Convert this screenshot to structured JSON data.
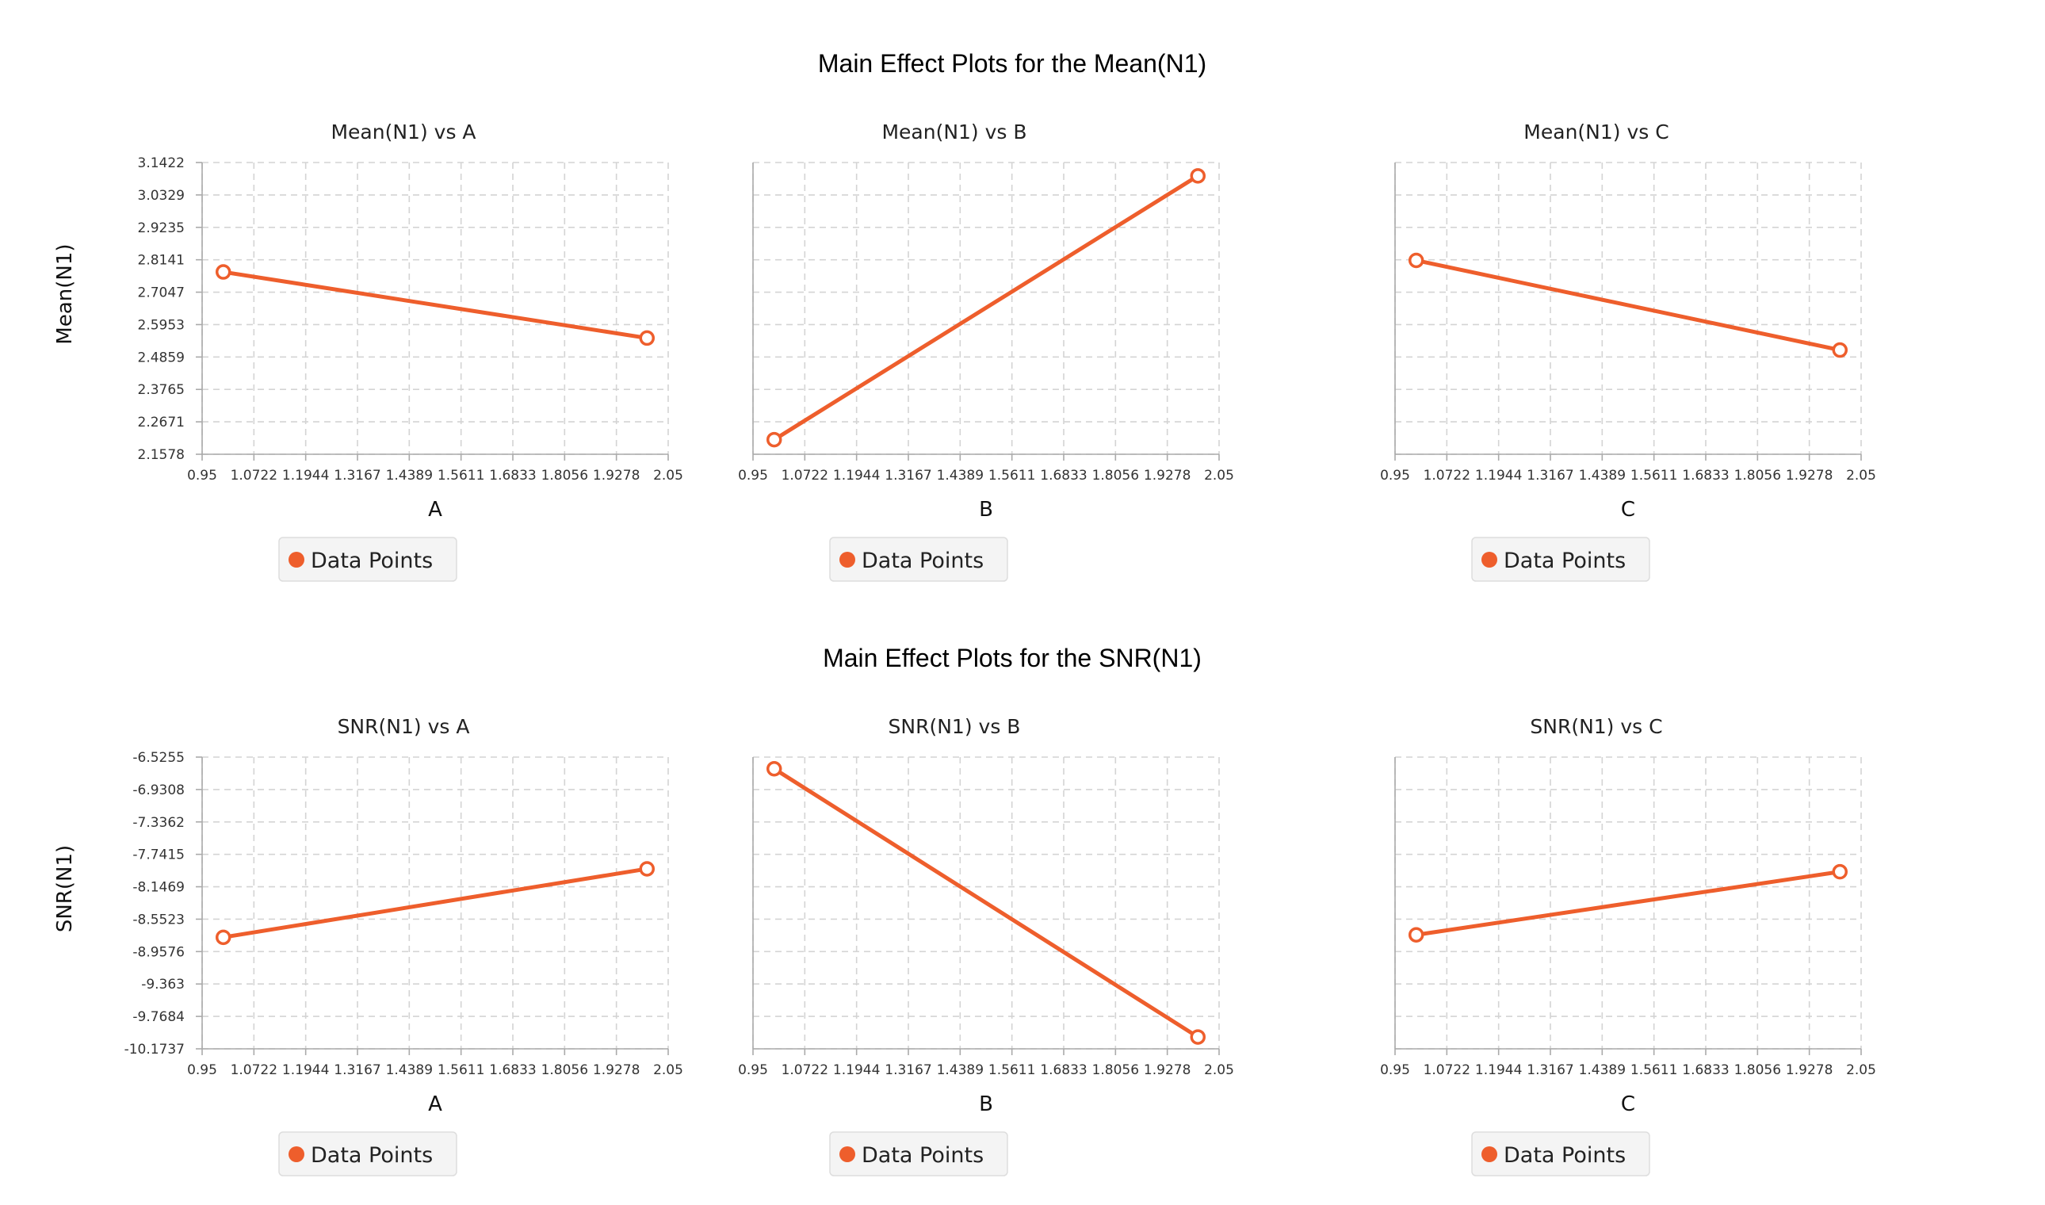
{
  "colors": {
    "series": "#ee5e2c",
    "grid": "#d4d4d4",
    "axis": "#aaaaaa",
    "legend_background": "#f4f4f4"
  },
  "sections": [
    {
      "title": "Main Effect Plots for the Mean(N1)",
      "ylabel": "Mean(N1)"
    },
    {
      "title": "Main Effect Plots for the SNR(N1)",
      "ylabel": "SNR(N1)"
    }
  ],
  "chart_data": [
    {
      "type": "line",
      "title": "Mean(N1) vs A",
      "xlabel": "A",
      "ylabel": "Mean(N1)",
      "x_ticks": [
        "0.95",
        "1.0722",
        "1.1944",
        "1.3167",
        "1.4389",
        "1.5611",
        "1.6833",
        "1.8056",
        "1.9278",
        "2.05"
      ],
      "y_ticks": [
        "3.1422",
        "3.0329",
        "2.9235",
        "2.8141",
        "2.7047",
        "2.5953",
        "2.4859",
        "2.3765",
        "2.2671",
        "2.1578"
      ],
      "xlim": [
        0.95,
        2.05
      ],
      "ylim": [
        2.1578,
        3.1422
      ],
      "grid": true,
      "legend": "bottom",
      "series": [
        {
          "name": "Data Points",
          "x": [
            1,
            2
          ],
          "y": [
            2.7729,
            2.5499
          ]
        }
      ]
    },
    {
      "type": "line",
      "title": "Mean(N1) vs B",
      "xlabel": "B",
      "ylabel": "",
      "x_ticks": [
        "0.95",
        "1.0722",
        "1.1944",
        "1.3167",
        "1.4389",
        "1.5611",
        "1.6833",
        "1.8056",
        "1.9278",
        "2.05"
      ],
      "y_ticks": [],
      "xlim": [
        0.95,
        2.05
      ],
      "ylim": [
        2.1578,
        3.1422
      ],
      "grid": true,
      "legend": "bottom",
      "series": [
        {
          "name": "Data Points",
          "x": [
            1,
            2
          ],
          "y": [
            2.2071,
            3.0971
          ]
        }
      ]
    },
    {
      "type": "line",
      "title": "Mean(N1) vs C",
      "xlabel": "C",
      "ylabel": "",
      "x_ticks": [
        "0.95",
        "1.0722",
        "1.1944",
        "1.3167",
        "1.4389",
        "1.5611",
        "1.6833",
        "1.8056",
        "1.9278",
        "2.05"
      ],
      "y_ticks": [],
      "xlim": [
        0.95,
        2.05
      ],
      "ylim": [
        2.1578,
        3.1422
      ],
      "grid": true,
      "legend": "bottom",
      "series": [
        {
          "name": "Data Points",
          "x": [
            1,
            2
          ],
          "y": [
            2.8119,
            2.5094
          ]
        }
      ]
    },
    {
      "type": "line",
      "title": "SNR(N1) vs A",
      "xlabel": "A",
      "ylabel": "SNR(N1)",
      "x_ticks": [
        "0.95",
        "1.0722",
        "1.1944",
        "1.3167",
        "1.4389",
        "1.5611",
        "1.6833",
        "1.8056",
        "1.9278",
        "2.05"
      ],
      "y_ticks": [
        "-6.5255",
        "-6.9308",
        "-7.3362",
        "-7.7415",
        "-8.1469",
        "-8.5523",
        "-8.9576",
        "-9.363",
        "-9.7684",
        "-10.1737"
      ],
      "xlim": [
        0.95,
        2.05
      ],
      "ylim": [
        -10.1737,
        -6.5255
      ],
      "grid": true,
      "legend": "bottom",
      "series": [
        {
          "name": "Data Points",
          "x": [
            1,
            2
          ],
          "y": [
            -8.7792,
            -7.9229
          ]
        }
      ]
    },
    {
      "type": "line",
      "title": "SNR(N1) vs B",
      "xlabel": "B",
      "ylabel": "",
      "x_ticks": [
        "0.95",
        "1.0722",
        "1.1944",
        "1.3167",
        "1.4389",
        "1.5611",
        "1.6833",
        "1.8056",
        "1.9278",
        "2.05"
      ],
      "y_ticks": [],
      "xlim": [
        0.95,
        2.05
      ],
      "ylim": [
        -10.1737,
        -6.5255
      ],
      "grid": true,
      "legend": "bottom",
      "series": [
        {
          "name": "Data Points",
          "x": [
            1,
            2
          ],
          "y": [
            -6.6718,
            -10.0257
          ]
        }
      ]
    },
    {
      "type": "line",
      "title": "SNR(N1) vs C",
      "xlabel": "C",
      "ylabel": "",
      "x_ticks": [
        "0.95",
        "1.0722",
        "1.1944",
        "1.3167",
        "1.4389",
        "1.5611",
        "1.6833",
        "1.8056",
        "1.9278",
        "2.05"
      ],
      "y_ticks": [],
      "xlim": [
        0.95,
        2.05
      ],
      "ylim": [
        -10.1737,
        -6.5255
      ],
      "grid": true,
      "legend": "bottom",
      "series": [
        {
          "name": "Data Points",
          "x": [
            1,
            2
          ],
          "y": [
            -8.7484,
            -7.9595
          ]
        }
      ]
    }
  ]
}
